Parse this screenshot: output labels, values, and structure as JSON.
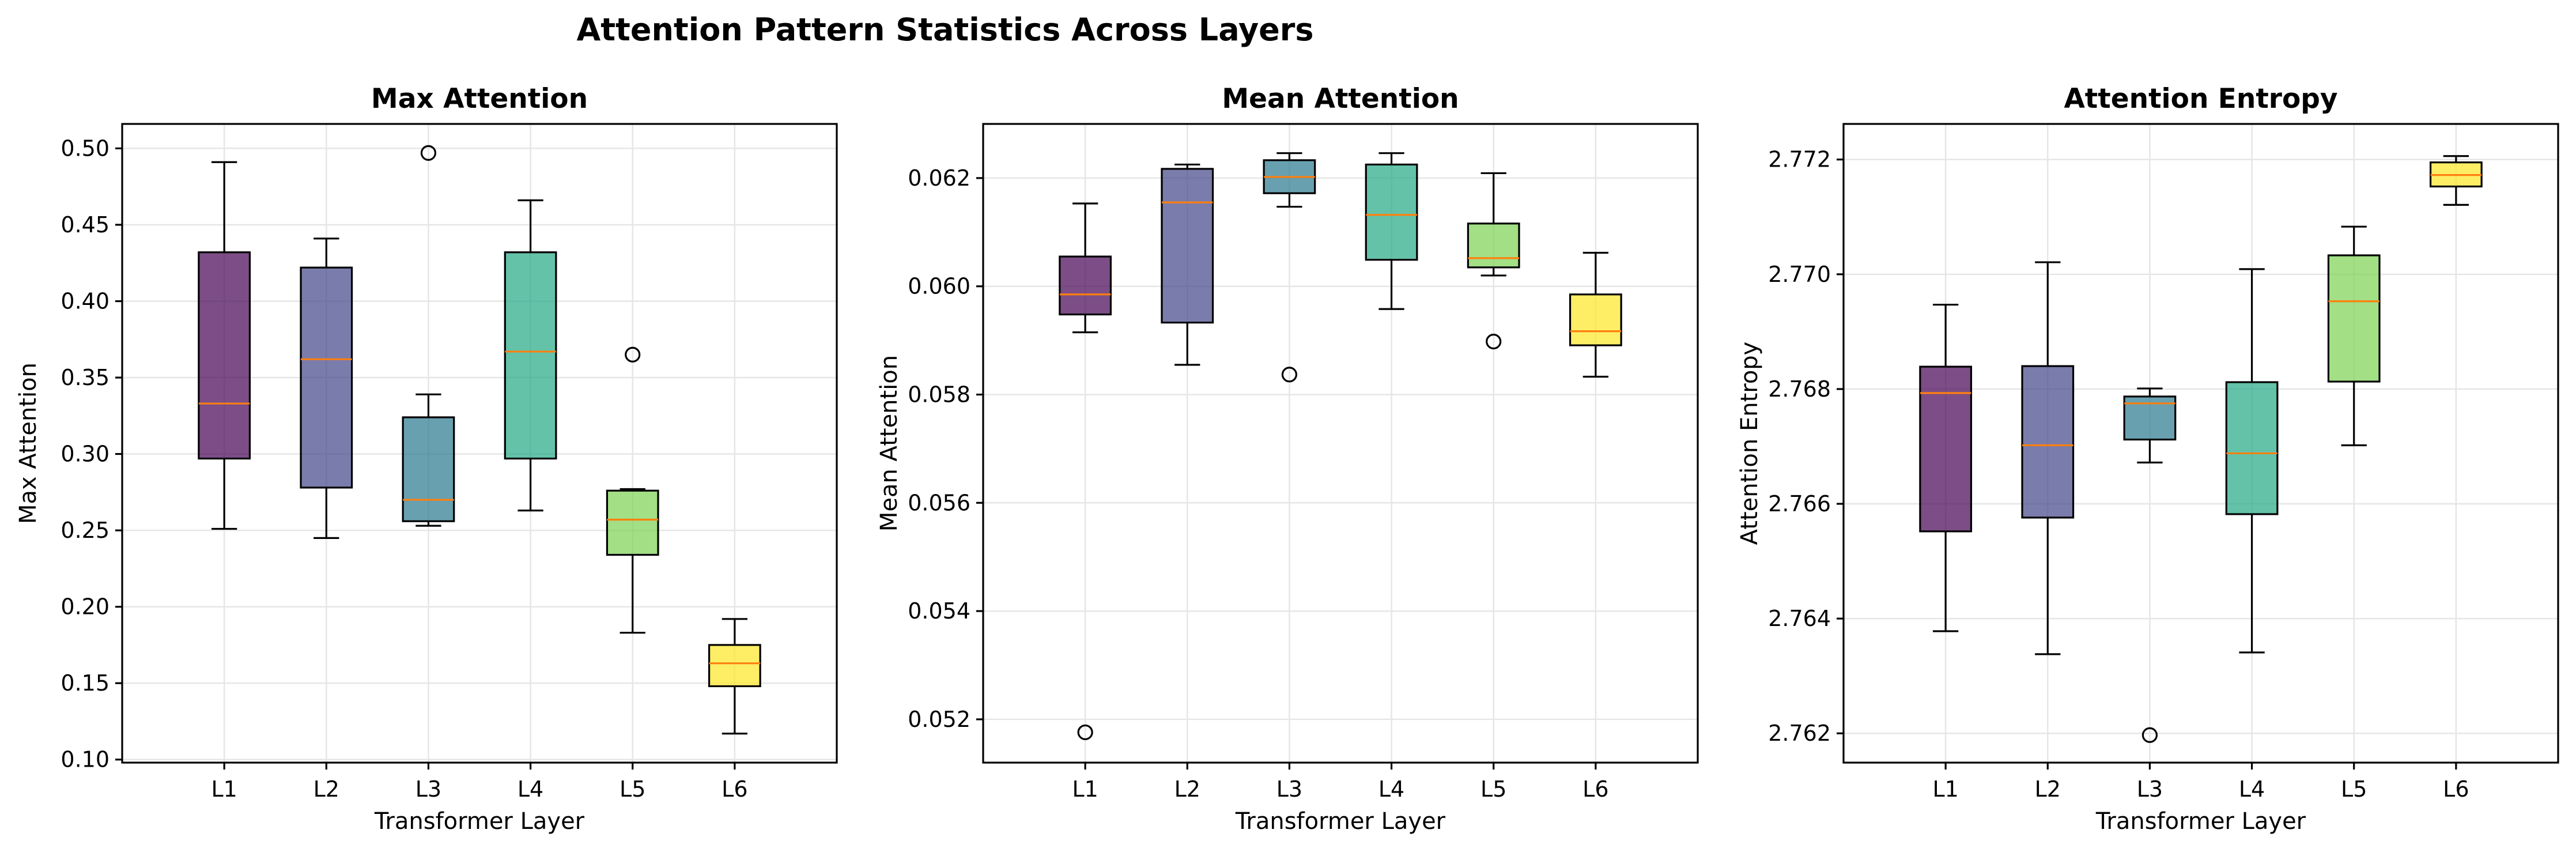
{
  "figure_title": "Attention Pattern Statistics Across Layers",
  "chart_data": [
    {
      "type": "box",
      "title": "Max Attention",
      "xlabel": "Transformer Layer",
      "ylabel": "Max Attention",
      "categories": [
        "L1",
        "L2",
        "L3",
        "L4",
        "L5",
        "L6"
      ],
      "ylim": [
        0.098,
        0.516
      ],
      "yticks": [
        0.1,
        0.15,
        0.2,
        0.25,
        0.3,
        0.35,
        0.4,
        0.45,
        0.5
      ],
      "ytick_labels": [
        "0.10",
        "0.15",
        "0.20",
        "0.25",
        "0.30",
        "0.35",
        "0.40",
        "0.45",
        "0.50"
      ],
      "grid": true,
      "boxes": [
        {
          "whislo": 0.251,
          "q1": 0.297,
          "med": 0.333,
          "q3": 0.432,
          "whishi": 0.491,
          "fliers": []
        },
        {
          "whislo": 0.245,
          "q1": 0.278,
          "med": 0.362,
          "q3": 0.422,
          "whishi": 0.441,
          "fliers": []
        },
        {
          "whislo": 0.253,
          "q1": 0.256,
          "med": 0.27,
          "q3": 0.324,
          "whishi": 0.339,
          "fliers": [
            0.497
          ]
        },
        {
          "whislo": 0.263,
          "q1": 0.297,
          "med": 0.367,
          "q3": 0.432,
          "whishi": 0.466,
          "fliers": []
        },
        {
          "whislo": 0.183,
          "q1": 0.234,
          "med": 0.257,
          "q3": 0.276,
          "whishi": 0.277,
          "fliers": [
            0.365
          ]
        },
        {
          "whislo": 0.117,
          "q1": 0.148,
          "med": 0.163,
          "q3": 0.175,
          "whishi": 0.192,
          "fliers": []
        }
      ]
    },
    {
      "type": "box",
      "title": "Mean Attention",
      "xlabel": "Transformer Layer",
      "ylabel": "Mean Attention",
      "categories": [
        "L1",
        "L2",
        "L3",
        "L4",
        "L5",
        "L6"
      ],
      "ylim": [
        0.0512,
        0.063
      ],
      "yticks": [
        0.052,
        0.054,
        0.056,
        0.058,
        0.06,
        0.062
      ],
      "ytick_labels": [
        "0.052",
        "0.054",
        "0.056",
        "0.058",
        "0.060",
        "0.062"
      ],
      "grid": true,
      "boxes": [
        {
          "whislo": 0.05915,
          "q1": 0.05948,
          "med": 0.05985,
          "q3": 0.06055,
          "whishi": 0.06153,
          "fliers": [
            0.05176
          ]
        },
        {
          "whislo": 0.05855,
          "q1": 0.05933,
          "med": 0.06155,
          "q3": 0.06217,
          "whishi": 0.06225,
          "fliers": []
        },
        {
          "whislo": 0.06147,
          "q1": 0.06172,
          "med": 0.06202,
          "q3": 0.06233,
          "whishi": 0.06246,
          "fliers": [
            0.05837
          ]
        },
        {
          "whislo": 0.05958,
          "q1": 0.06049,
          "med": 0.06132,
          "q3": 0.06225,
          "whishi": 0.06246,
          "fliers": []
        },
        {
          "whislo": 0.0602,
          "q1": 0.06035,
          "med": 0.06052,
          "q3": 0.06116,
          "whishi": 0.06209,
          "fliers": [
            0.05898
          ]
        },
        {
          "whislo": 0.05833,
          "q1": 0.05891,
          "med": 0.05917,
          "q3": 0.05985,
          "whishi": 0.06062,
          "fliers": []
        }
      ]
    },
    {
      "type": "box",
      "title": "Attention Entropy",
      "xlabel": "Transformer Layer",
      "ylabel": "Attention Entropy",
      "categories": [
        "L1",
        "L2",
        "L3",
        "L4",
        "L5",
        "L6"
      ],
      "ylim": [
        2.76149,
        2.77262
      ],
      "yticks": [
        2.762,
        2.764,
        2.766,
        2.768,
        2.77,
        2.772
      ],
      "ytick_labels": [
        "2.762",
        "2.764",
        "2.766",
        "2.768",
        "2.770",
        "2.772"
      ],
      "grid": true,
      "boxes": [
        {
          "whislo": 2.76378,
          "q1": 2.76552,
          "med": 2.76793,
          "q3": 2.76839,
          "whishi": 2.76947,
          "fliers": []
        },
        {
          "whislo": 2.76338,
          "q1": 2.76576,
          "med": 2.76702,
          "q3": 2.7684,
          "whishi": 2.77021,
          "fliers": []
        },
        {
          "whislo": 2.76672,
          "q1": 2.76712,
          "med": 2.76775,
          "q3": 2.76787,
          "whishi": 2.76801,
          "fliers": [
            2.76197
          ]
        },
        {
          "whislo": 2.76341,
          "q1": 2.76582,
          "med": 2.76688,
          "q3": 2.76812,
          "whishi": 2.77009,
          "fliers": []
        },
        {
          "whislo": 2.76702,
          "q1": 2.76813,
          "med": 2.76953,
          "q3": 2.77033,
          "whishi": 2.77083,
          "fliers": []
        },
        {
          "whislo": 2.77121,
          "q1": 2.77153,
          "med": 2.77173,
          "q3": 2.77195,
          "whishi": 2.77206,
          "fliers": []
        }
      ]
    }
  ],
  "colors": {
    "boxes": [
      "#440154",
      "#414487",
      "#2a788e",
      "#22a884",
      "#7ad151",
      "#fde725"
    ],
    "box_alpha": 0.7,
    "median": "#ff7f0e",
    "grid": "#e6e6e6",
    "line": "#000000"
  }
}
